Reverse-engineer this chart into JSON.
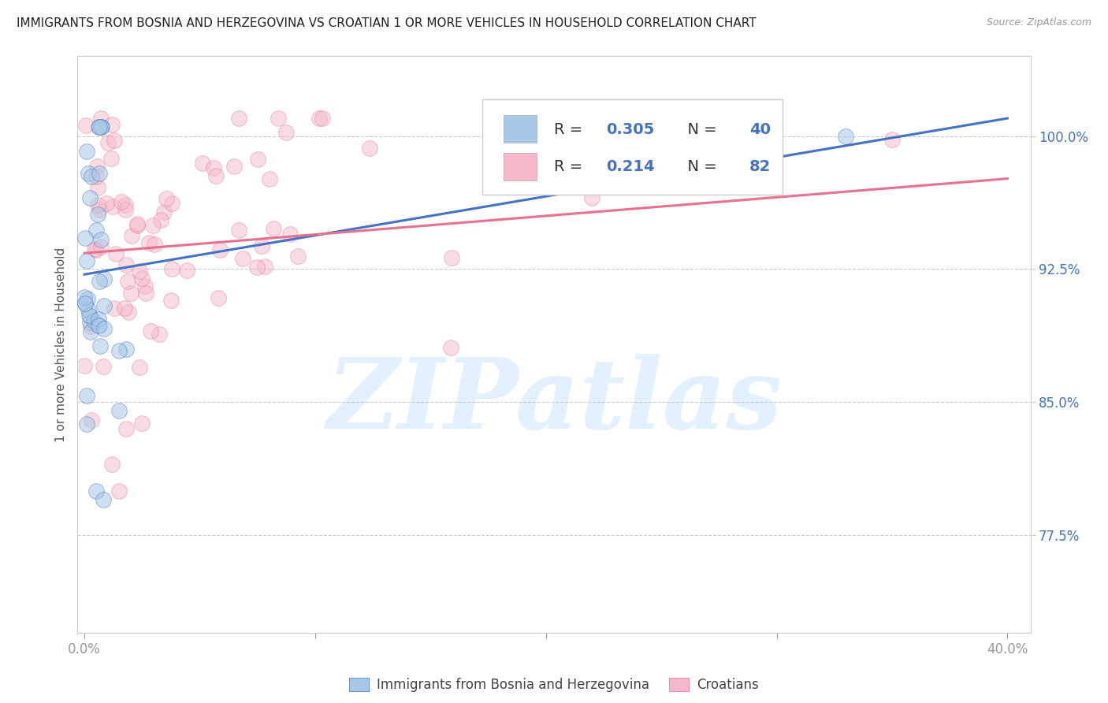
{
  "title": "IMMIGRANTS FROM BOSNIA AND HERZEGOVINA VS CROATIAN 1 OR MORE VEHICLES IN HOUSEHOLD CORRELATION CHART",
  "source": "Source: ZipAtlas.com",
  "ylabel": "1 or more Vehicles in Household",
  "ytick_labels": [
    "77.5%",
    "85.0%",
    "92.5%",
    "100.0%"
  ],
  "ytick_values": [
    0.775,
    0.85,
    0.925,
    1.0
  ],
  "xtick_labels": [
    "0.0%",
    "40.0%"
  ],
  "xtick_values": [
    0.0,
    0.4
  ],
  "legend_label1": "Immigrants from Bosnia and Herzegovina",
  "legend_label2": "Croatians",
  "R1": 0.305,
  "N1": 40,
  "R2": 0.214,
  "N2": 82,
  "color1": "#a8c8e8",
  "color2": "#f5b8c8",
  "line_color1": "#4472c4",
  "line_color2": "#e87090",
  "watermark_text": "ZIPatlas",
  "watermark_color": "#ddeeff",
  "background_color": "#ffffff",
  "title_fontsize": 11,
  "tick_color": "#4472c4",
  "ylabel_color": "#555555",
  "blue_line_x": [
    0.0,
    0.4
  ],
  "blue_line_y": [
    0.922,
    1.01
  ],
  "pink_line_x": [
    0.0,
    0.4
  ],
  "pink_line_y": [
    0.934,
    0.976
  ],
  "xmin": -0.003,
  "xmax": 0.41,
  "ymin": 0.72,
  "ymax": 1.045
}
